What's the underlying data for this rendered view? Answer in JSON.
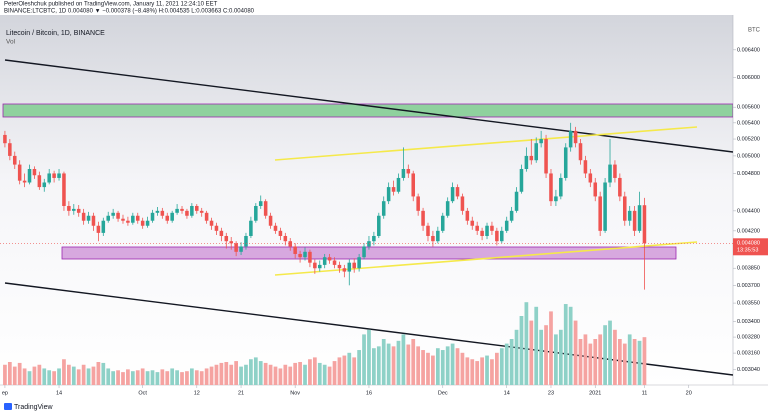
{
  "chart_data": {
    "type": "candlestick",
    "attribution": "PeterOleshchuk published on TradingView.com, January 11, 2021 12:24:10 EET",
    "legend_line": "BINANCE:LTCBTC, 1D 0.004080 ▼ −0.000378 (−8.48%) H:0.004535 L:0.003663 C:0.004080",
    "title": "Litecoin / Bitcoin, 1D, BINANCE",
    "subtitle": "Vol",
    "axis_unit": "BTC",
    "last_price_label": "0.004080",
    "countdown": "13:35:53",
    "brand": "TradingView",
    "log_scale": true,
    "ylim": [
      0.002934,
      0.00694
    ],
    "yticks": [
      {
        "value": 0.0064,
        "label": "0.006400"
      },
      {
        "value": 0.006,
        "label": "0.006000"
      },
      {
        "value": 0.0056,
        "label": "0.005600"
      },
      {
        "value": 0.0054,
        "label": "0.005400"
      },
      {
        "value": 0.0052,
        "label": "0.005200"
      },
      {
        "value": 0.005,
        "label": "0.005000"
      },
      {
        "value": 0.0048,
        "label": "0.004800"
      },
      {
        "value": 0.0044,
        "label": "0.004400"
      },
      {
        "value": 0.0042,
        "label": "0.004200"
      },
      {
        "value": 0.00385,
        "label": "0.003850"
      },
      {
        "value": 0.0037,
        "label": "0.003700"
      },
      {
        "value": 0.00355,
        "label": "0.003550"
      },
      {
        "value": 0.0034,
        "label": "0.003400"
      },
      {
        "value": 0.00328,
        "label": "0.003280"
      },
      {
        "value": 0.00316,
        "label": "0.003160"
      },
      {
        "value": 0.00304,
        "label": "0.003040"
      }
    ],
    "xlim": [
      -1,
      148
    ],
    "xticks": [
      {
        "value": 0,
        "label": "ep"
      },
      {
        "value": 11,
        "label": "14"
      },
      {
        "value": 28,
        "label": "Oct"
      },
      {
        "value": 39,
        "label": "12"
      },
      {
        "value": 48,
        "label": "21"
      },
      {
        "value": 59,
        "label": "Nov"
      },
      {
        "value": 74,
        "label": "16"
      },
      {
        "value": 89,
        "label": "Dec"
      },
      {
        "value": 102,
        "label": "14"
      },
      {
        "value": 111,
        "label": "23"
      },
      {
        "value": 120,
        "label": "2021"
      },
      {
        "value": 130,
        "label": "11"
      },
      {
        "value": 139,
        "label": "20"
      }
    ],
    "series": [
      {
        "up_color": "#26a69a",
        "down_color": "#ef5350",
        "values": [
          [
            0.00525,
            0.0053,
            0.0051,
            0.00515
          ],
          [
            0.00515,
            0.0052,
            0.00495,
            0.005
          ],
          [
            0.005,
            0.00505,
            0.00485,
            0.0049
          ],
          [
            0.0049,
            0.00495,
            0.00468,
            0.00472
          ],
          [
            0.00472,
            0.0048,
            0.00465,
            0.0047
          ],
          [
            0.0047,
            0.0049,
            0.00468,
            0.00485
          ],
          [
            0.00485,
            0.00488,
            0.00474,
            0.00478
          ],
          [
            0.00478,
            0.00482,
            0.00462,
            0.00465
          ],
          [
            0.00465,
            0.00474,
            0.0046,
            0.0047
          ],
          [
            0.0047,
            0.00485,
            0.00468,
            0.0048
          ],
          [
            0.0048,
            0.00483,
            0.0047,
            0.00475
          ],
          [
            0.00475,
            0.00485,
            0.00472,
            0.0048
          ],
          [
            0.0048,
            0.00482,
            0.0044,
            0.00445
          ],
          [
            0.00445,
            0.0045,
            0.00435,
            0.0044
          ],
          [
            0.0044,
            0.00447,
            0.00436,
            0.00442
          ],
          [
            0.00442,
            0.00446,
            0.00434,
            0.00438
          ],
          [
            0.00438,
            0.00442,
            0.00426,
            0.0043
          ],
          [
            0.0043,
            0.00439,
            0.00427,
            0.00435
          ],
          [
            0.00435,
            0.00438,
            0.0042,
            0.00425
          ],
          [
            0.00425,
            0.00429,
            0.0041,
            0.00418
          ],
          [
            0.00418,
            0.00433,
            0.00415,
            0.0043
          ],
          [
            0.0043,
            0.00439,
            0.00428,
            0.00435
          ],
          [
            0.00435,
            0.00442,
            0.00432,
            0.00438
          ],
          [
            0.00438,
            0.0044,
            0.00429,
            0.00432
          ],
          [
            0.00432,
            0.00436,
            0.00427,
            0.0043
          ],
          [
            0.0043,
            0.00434,
            0.00425,
            0.00428
          ],
          [
            0.00428,
            0.00438,
            0.00426,
            0.00435
          ],
          [
            0.00435,
            0.00438,
            0.00427,
            0.0043
          ],
          [
            0.0043,
            0.00433,
            0.00422,
            0.00425
          ],
          [
            0.00425,
            0.00434,
            0.00423,
            0.0043
          ],
          [
            0.0043,
            0.00441,
            0.00428,
            0.00438
          ],
          [
            0.00438,
            0.00444,
            0.00435,
            0.0044
          ],
          [
            0.0044,
            0.00443,
            0.00432,
            0.00435
          ],
          [
            0.00435,
            0.00438,
            0.00427,
            0.0043
          ],
          [
            0.0043,
            0.0044,
            0.00428,
            0.00438
          ],
          [
            0.00438,
            0.00447,
            0.00436,
            0.00442
          ],
          [
            0.00442,
            0.00445,
            0.00437,
            0.0044
          ],
          [
            0.0044,
            0.00442,
            0.00432,
            0.00435
          ],
          [
            0.00435,
            0.00448,
            0.00433,
            0.00445
          ],
          [
            0.00445,
            0.00447,
            0.00437,
            0.0044
          ],
          [
            0.0044,
            0.00443,
            0.00434,
            0.00438
          ],
          [
            0.00438,
            0.0044,
            0.00427,
            0.0043
          ],
          [
            0.0043,
            0.00433,
            0.00421,
            0.00425
          ],
          [
            0.00425,
            0.00428,
            0.00416,
            0.0042
          ],
          [
            0.0042,
            0.00423,
            0.0041,
            0.00415
          ],
          [
            0.00415,
            0.00418,
            0.00403,
            0.0041
          ],
          [
            0.0041,
            0.00414,
            0.00402,
            0.00408
          ],
          [
            0.00408,
            0.0041,
            0.00396,
            0.004
          ],
          [
            0.004,
            0.00409,
            0.00397,
            0.00405
          ],
          [
            0.00405,
            0.00418,
            0.00402,
            0.00415
          ],
          [
            0.00415,
            0.00434,
            0.00413,
            0.0043
          ],
          [
            0.0043,
            0.00448,
            0.00428,
            0.00445
          ],
          [
            0.00445,
            0.00456,
            0.00442,
            0.0045
          ],
          [
            0.0045,
            0.00452,
            0.00432,
            0.00435
          ],
          [
            0.00435,
            0.00438,
            0.00422,
            0.00425
          ],
          [
            0.00425,
            0.00428,
            0.00417,
            0.0042
          ],
          [
            0.0042,
            0.00423,
            0.00411,
            0.00415
          ],
          [
            0.00415,
            0.00418,
            0.00406,
            0.0041
          ],
          [
            0.0041,
            0.00413,
            0.00401,
            0.00405
          ],
          [
            0.00405,
            0.00408,
            0.00394,
            0.00398
          ],
          [
            0.00398,
            0.00401,
            0.0039,
            0.00395
          ],
          [
            0.00395,
            0.00404,
            0.00392,
            0.004
          ],
          [
            0.004,
            0.00402,
            0.00386,
            0.0039
          ],
          [
            0.0039,
            0.00393,
            0.0038,
            0.00385
          ],
          [
            0.00385,
            0.00392,
            0.00382,
            0.00388
          ],
          [
            0.00388,
            0.00398,
            0.00385,
            0.00395
          ],
          [
            0.00395,
            0.00398,
            0.00389,
            0.00392
          ],
          [
            0.00392,
            0.00395,
            0.00385,
            0.00388
          ],
          [
            0.00388,
            0.00391,
            0.00381,
            0.00385
          ],
          [
            0.00385,
            0.00388,
            0.00377,
            0.00382
          ],
          [
            0.00382,
            0.00393,
            0.0037,
            0.0039
          ],
          [
            0.0039,
            0.00394,
            0.00381,
            0.00385
          ],
          [
            0.00385,
            0.00398,
            0.00382,
            0.00395
          ],
          [
            0.00395,
            0.00408,
            0.00393,
            0.00405
          ],
          [
            0.00405,
            0.00415,
            0.00402,
            0.0041
          ],
          [
            0.0041,
            0.00419,
            0.00406,
            0.00415
          ],
          [
            0.00415,
            0.00438,
            0.00413,
            0.00435
          ],
          [
            0.00435,
            0.00455,
            0.00432,
            0.0045
          ],
          [
            0.0045,
            0.0047,
            0.00447,
            0.00465
          ],
          [
            0.00465,
            0.00472,
            0.00456,
            0.0046
          ],
          [
            0.0046,
            0.0048,
            0.00458,
            0.00475
          ],
          [
            0.00475,
            0.0051,
            0.00472,
            0.00485
          ],
          [
            0.00485,
            0.0049,
            0.00475,
            0.0048
          ],
          [
            0.0048,
            0.00483,
            0.0045,
            0.00455
          ],
          [
            0.00455,
            0.00458,
            0.00435,
            0.0044
          ],
          [
            0.0044,
            0.00443,
            0.0042,
            0.00425
          ],
          [
            0.00425,
            0.00428,
            0.0041,
            0.00415
          ],
          [
            0.00415,
            0.0042,
            0.00405,
            0.0041
          ],
          [
            0.0041,
            0.00424,
            0.00408,
            0.0042
          ],
          [
            0.0042,
            0.00438,
            0.00418,
            0.00435
          ],
          [
            0.00435,
            0.00454,
            0.00433,
            0.0045
          ],
          [
            0.0045,
            0.0047,
            0.00448,
            0.00465
          ],
          [
            0.00465,
            0.00468,
            0.00452,
            0.00455
          ],
          [
            0.00455,
            0.00458,
            0.00436,
            0.0044
          ],
          [
            0.0044,
            0.00443,
            0.00426,
            0.0043
          ],
          [
            0.0043,
            0.00434,
            0.00421,
            0.00425
          ],
          [
            0.00425,
            0.00429,
            0.00416,
            0.0042
          ],
          [
            0.0042,
            0.00423,
            0.00411,
            0.00415
          ],
          [
            0.00415,
            0.00428,
            0.00412,
            0.00425
          ],
          [
            0.00425,
            0.00429,
            0.00416,
            0.0042
          ],
          [
            0.0042,
            0.00423,
            0.00406,
            0.0041
          ],
          [
            0.0041,
            0.00424,
            0.00408,
            0.0042
          ],
          [
            0.0042,
            0.00434,
            0.00418,
            0.0043
          ],
          [
            0.0043,
            0.00444,
            0.00428,
            0.0044
          ],
          [
            0.0044,
            0.00465,
            0.00438,
            0.0046
          ],
          [
            0.0046,
            0.0049,
            0.00458,
            0.00485
          ],
          [
            0.00485,
            0.0051,
            0.00482,
            0.005
          ],
          [
            0.005,
            0.0052,
            0.0049,
            0.00495
          ],
          [
            0.00495,
            0.00522,
            0.00492,
            0.00515
          ],
          [
            0.00515,
            0.0053,
            0.0051,
            0.0052
          ],
          [
            0.0052,
            0.00525,
            0.00475,
            0.0048
          ],
          [
            0.0048,
            0.00485,
            0.00445,
            0.0045
          ],
          [
            0.0045,
            0.00462,
            0.00445,
            0.00455
          ],
          [
            0.00455,
            0.0048,
            0.00452,
            0.00475
          ],
          [
            0.00475,
            0.00515,
            0.00472,
            0.0051
          ],
          [
            0.0051,
            0.0054,
            0.00505,
            0.0053
          ],
          [
            0.0053,
            0.00535,
            0.0051,
            0.00515
          ],
          [
            0.00515,
            0.0052,
            0.0049,
            0.00495
          ],
          [
            0.00495,
            0.005,
            0.00475,
            0.0048
          ],
          [
            0.0048,
            0.00485,
            0.00465,
            0.0047
          ],
          [
            0.0047,
            0.00475,
            0.0045,
            0.00455
          ],
          [
            0.00455,
            0.0046,
            0.00415,
            0.0042
          ],
          [
            0.0042,
            0.00475,
            0.00418,
            0.0047
          ],
          [
            0.0047,
            0.0052,
            0.00465,
            0.0049
          ],
          [
            0.0049,
            0.00495,
            0.0047,
            0.00475
          ],
          [
            0.00475,
            0.0048,
            0.0045,
            0.00455
          ],
          [
            0.00455,
            0.0046,
            0.00425,
            0.0043
          ],
          [
            0.0043,
            0.00445,
            0.00425,
            0.0044
          ],
          [
            0.0044,
            0.00445,
            0.00415,
            0.0042
          ],
          [
            0.0042,
            0.0046,
            0.00418,
            0.004458
          ],
          [
            0.004458,
            0.004535,
            0.003663,
            0.00408
          ]
        ]
      }
    ],
    "volume": {
      "up_color": "#8ed1c7",
      "down_color": "#f5a3a1",
      "lim": [
        0,
        100
      ],
      "values": [
        22,
        25,
        20,
        24,
        18,
        15,
        20,
        22,
        18,
        16,
        15,
        18,
        28,
        22,
        20,
        17,
        22,
        18,
        20,
        25,
        24,
        18,
        15,
        16,
        14,
        17,
        15,
        16,
        18,
        15,
        16,
        14,
        17,
        15,
        18,
        16,
        14,
        15,
        18,
        16,
        15,
        18,
        20,
        22,
        24,
        25,
        22,
        26,
        20,
        22,
        28,
        30,
        26,
        24,
        22,
        20,
        18,
        22,
        20,
        24,
        25,
        22,
        28,
        30,
        24,
        22,
        20,
        26,
        30,
        32,
        35,
        30,
        38,
        55,
        60,
        40,
        42,
        50,
        45,
        42,
        48,
        55,
        44,
        50,
        42,
        38,
        35,
        32,
        40,
        38,
        42,
        45,
        40,
        35,
        30,
        28,
        26,
        30,
        32,
        28,
        35,
        40,
        45,
        50,
        60,
        75,
        90,
        70,
        85,
        60,
        65,
        80,
        55,
        60,
        88,
        85,
        70,
        50,
        55,
        45,
        50,
        55,
        65,
        70,
        60,
        50,
        45,
        55,
        50,
        48,
        52
      ]
    }
  }
}
